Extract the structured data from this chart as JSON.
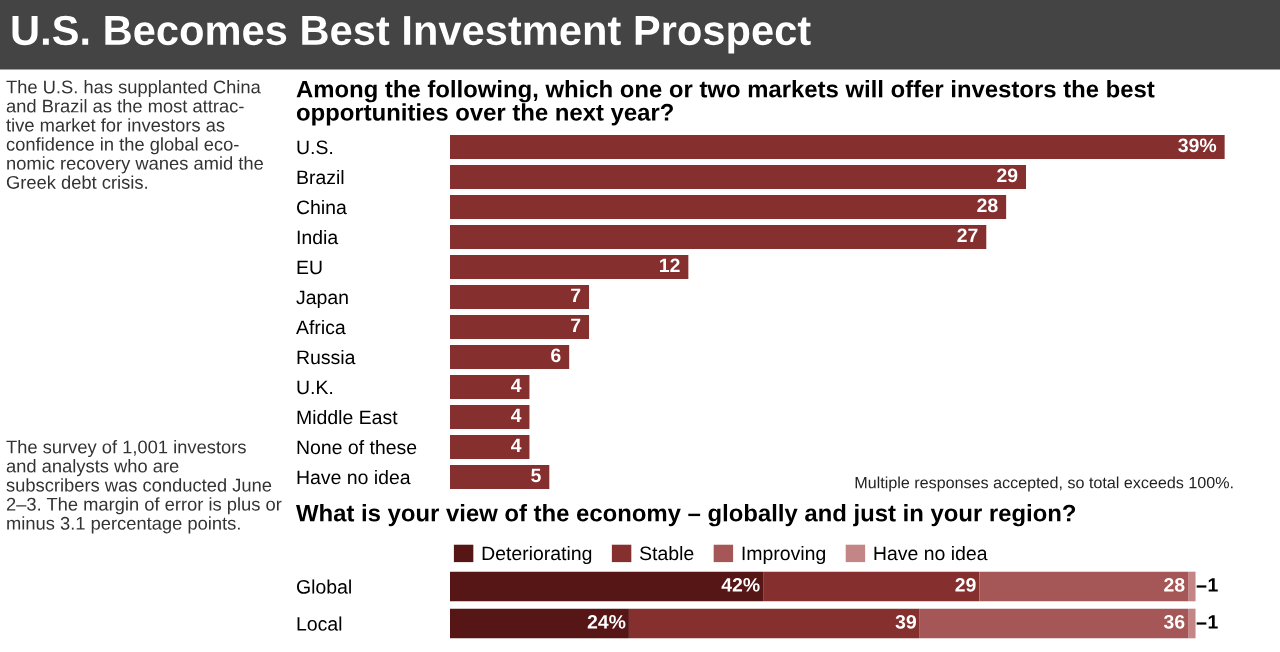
{
  "chart_data": [
    {
      "type": "other",
      "title": "U.S. Becomes Best Investment Prospect",
      "annotations": [
        "The U.S. has supplanted China\nand Brazil as the most attrac-\ntive market for investors as\nconfidence in the global eco-\nnomic recovery wanes amid the\nGreek debt crisis.",
        "The survey of 1,001 investors\nand analysts who are\nsubscribers was conducted June\n2–3. The margin of error is plus or\nminus 3.1 percentage points."
      ]
    },
    {
      "type": "bar",
      "orientation": "horizontal",
      "title": "Among the following, which one or two markets will offer investors the best\nopportunities over the next year?",
      "categories": [
        "U.S.",
        "Brazil",
        "China",
        "India",
        "EU",
        "Japan",
        "Africa",
        "Russia",
        "U.K.",
        "Middle East",
        "None of these",
        "Have no idea"
      ],
      "values": [
        39,
        29,
        28,
        27,
        12,
        7,
        7,
        6,
        4,
        4,
        4,
        5
      ],
      "value_labels": [
        "39%",
        "29",
        "28",
        "27",
        "12",
        "7",
        "7",
        "6",
        "4",
        "4",
        "4",
        "5"
      ],
      "color": "#862f2f",
      "tick_labels": "y",
      "legend": false,
      "annotations": [
        "Multiple responses accepted, so total exceeds 100%."
      ]
    },
    {
      "type": "bar",
      "orientation": "horizontal",
      "stacked": true,
      "title": "What is your view of the economy – globally and just in your region?",
      "categories": [
        "Global",
        "Local"
      ],
      "tick_labels": "y",
      "legend": "top left",
      "series": [
        {
          "name": "Deteriorating",
          "color": "#561616",
          "values": [
            42,
            24
          ],
          "value_labels": [
            "42%",
            "24%"
          ]
        },
        {
          "name": "Stable",
          "color": "#862f2f",
          "values": [
            29,
            39
          ],
          "value_labels": [
            "29",
            "39"
          ]
        },
        {
          "name": "Improving",
          "color": "#a55656",
          "values": [
            28,
            36
          ],
          "value_labels": [
            "28",
            "36"
          ]
        },
        {
          "name": "Have no idea",
          "color": "#c38585",
          "values": [
            1,
            1
          ],
          "value_labels": [
            "1",
            "1"
          ]
        }
      ]
    }
  ]
}
